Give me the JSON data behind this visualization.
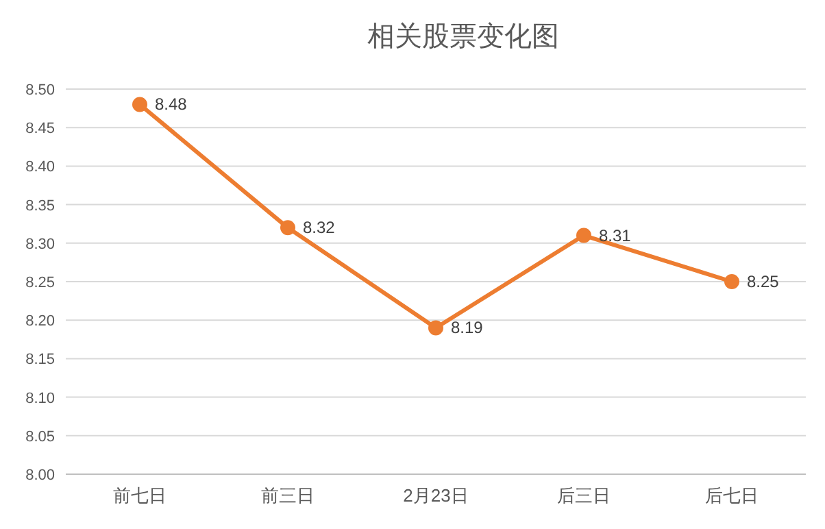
{
  "chart_data": {
    "type": "line",
    "title": "相关股票变化图",
    "categories": [
      "前七日",
      "前三日",
      "2月23日",
      "后三日",
      "后七日"
    ],
    "series": [
      {
        "color": "#ed7d31",
        "values": [
          8.48,
          8.32,
          8.19,
          8.31,
          8.25
        ]
      }
    ],
    "ylim": [
      8.0,
      8.5
    ],
    "yticks": [
      {
        "value": 8.0,
        "label": "8.00"
      },
      {
        "value": 8.05,
        "label": "8.05"
      },
      {
        "value": 8.1,
        "label": "8.10"
      },
      {
        "value": 8.15,
        "label": "8.15"
      },
      {
        "value": 8.2,
        "label": "8.20"
      },
      {
        "value": 8.25,
        "label": "8.25"
      },
      {
        "value": 8.3,
        "label": "8.30"
      },
      {
        "value": 8.35,
        "label": "8.35"
      },
      {
        "value": 8.4,
        "label": "8.40"
      },
      {
        "value": 8.45,
        "label": "8.45"
      },
      {
        "value": 8.5,
        "label": "8.50"
      }
    ],
    "grid": "y",
    "marker": "circle",
    "line_style": "solid",
    "data_labels": true
  }
}
